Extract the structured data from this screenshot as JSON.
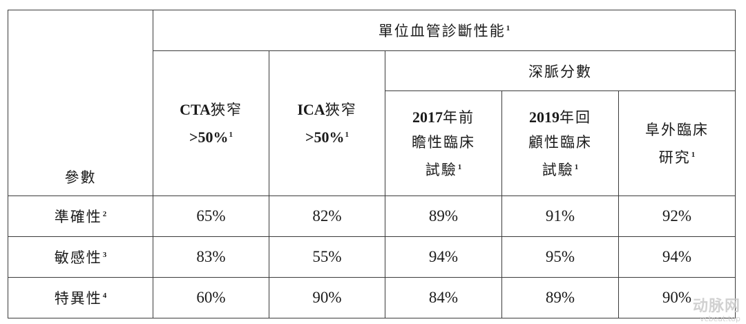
{
  "table": {
    "param_header": "參數",
    "group_header": {
      "text": "單位血管診斷性能",
      "note": "1"
    },
    "subgroup_header": "深脈分數",
    "columns": [
      {
        "line1_latin": "CTA",
        "line1_cjk": "狹窄",
        "line2": ">50%",
        "note": "1"
      },
      {
        "line1_latin": "ICA",
        "line1_cjk": "狹窄",
        "line2": ">50%",
        "note": "1"
      },
      {
        "line1_latin": "2017",
        "line1_cjk": "年前",
        "line2": "瞻性臨床",
        "line3": "試驗",
        "note": "1"
      },
      {
        "line1_latin": "2019",
        "line1_cjk": "年回",
        "line2": "顧性臨床",
        "line3": "試驗",
        "note": "1"
      },
      {
        "line1_cjk": "阜外臨床",
        "line2": "研究",
        "note": "1"
      }
    ],
    "rows": [
      {
        "label": "準確性",
        "note": "2",
        "values": [
          "65%",
          "82%",
          "89%",
          "91%",
          "92%"
        ]
      },
      {
        "label": "敏感性",
        "note": "3",
        "values": [
          "83%",
          "55%",
          "94%",
          "95%",
          "94%"
        ]
      },
      {
        "label": "特異性",
        "note": "4",
        "values": [
          "60%",
          "90%",
          "84%",
          "89%",
          "90%"
        ]
      }
    ]
  },
  "watermark": {
    "name": "动脉网",
    "url": "vcbeat.top"
  }
}
